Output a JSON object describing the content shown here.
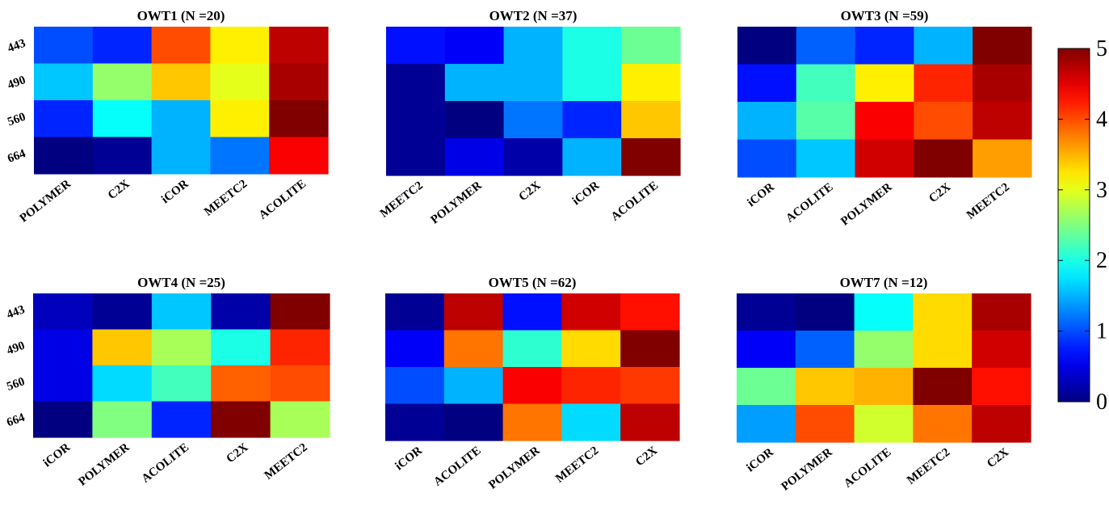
{
  "colors": {
    "colormap": "jet",
    "background": "#ffffff",
    "text": "#000000"
  },
  "chart_data": [
    {
      "type": "heatmap",
      "title": "OWT1  (N =20)",
      "x_categories": [
        "POLYMER",
        "C2X",
        "iCOR",
        "MEETC2",
        "ACOLITE"
      ],
      "y_categories": [
        "443",
        "490",
        "560",
        "664"
      ],
      "values": [
        [
          1.0,
          0.8,
          4.0,
          3.2,
          4.7
        ],
        [
          1.6,
          2.6,
          3.4,
          3.0,
          4.8
        ],
        [
          0.8,
          1.9,
          1.5,
          3.2,
          5.0
        ],
        [
          0.0,
          0.1,
          1.5,
          1.2,
          4.4
        ]
      ],
      "zlim": [
        0,
        5
      ]
    },
    {
      "type": "heatmap",
      "title": "OWT2  (N =37)",
      "x_categories": [
        "MEETC2",
        "POLYMER",
        "C2X",
        "iCOR",
        "ACOLITE"
      ],
      "y_categories": [
        "443",
        "490",
        "560",
        "664"
      ],
      "values": [
        [
          0.7,
          0.6,
          1.5,
          2.0,
          2.4
        ],
        [
          0.1,
          1.5,
          1.5,
          2.0,
          3.2
        ],
        [
          0.1,
          0.0,
          1.2,
          0.8,
          3.4
        ],
        [
          0.1,
          0.5,
          0.2,
          1.5,
          5.0
        ]
      ],
      "zlim": [
        0,
        5
      ]
    },
    {
      "type": "heatmap",
      "title": "OWT3  (N =59)",
      "x_categories": [
        "iCOR",
        "ACOLITE",
        "POLYMER",
        "C2X",
        "MEETC2"
      ],
      "y_categories": [
        "443",
        "490",
        "560",
        "664"
      ],
      "values": [
        [
          0.0,
          1.1,
          0.8,
          1.5,
          5.0
        ],
        [
          0.7,
          2.2,
          3.2,
          4.2,
          4.8
        ],
        [
          1.5,
          2.3,
          4.4,
          4.0,
          4.7
        ],
        [
          1.0,
          1.6,
          4.6,
          5.0,
          3.6
        ]
      ],
      "zlim": [
        0,
        5
      ]
    },
    {
      "type": "heatmap",
      "title": "OWT4  (N =25)",
      "x_categories": [
        "iCOR",
        "POLYMER",
        "ACOLITE",
        "C2X",
        "MEETC2"
      ],
      "y_categories": [
        "443",
        "490",
        "560",
        "664"
      ],
      "values": [
        [
          0.3,
          0.1,
          1.6,
          0.2,
          5.0
        ],
        [
          0.5,
          3.4,
          2.7,
          2.0,
          4.2
        ],
        [
          0.5,
          1.7,
          2.2,
          3.9,
          4.0
        ],
        [
          0.0,
          2.5,
          0.8,
          5.0,
          2.7
        ]
      ],
      "zlim": [
        0,
        5
      ]
    },
    {
      "type": "heatmap",
      "title": "OWT5  (N =62)",
      "x_categories": [
        "iCOR",
        "ACOLITE",
        "POLYMER",
        "MEETC2",
        "C2X"
      ],
      "y_categories": [
        "443",
        "490",
        "560",
        "664"
      ],
      "values": [
        [
          0.1,
          4.7,
          0.7,
          4.6,
          4.3
        ],
        [
          0.6,
          3.8,
          2.1,
          3.3,
          5.0
        ],
        [
          1.0,
          1.5,
          4.4,
          4.2,
          4.1
        ],
        [
          0.1,
          0.0,
          3.8,
          1.7,
          4.7
        ]
      ],
      "zlim": [
        0,
        5
      ]
    },
    {
      "type": "heatmap",
      "title": "OWT7  (N =12)",
      "x_categories": [
        "iCOR",
        "POLYMER",
        "ACOLITE",
        "MEETC2",
        "C2X"
      ],
      "y_categories": [
        "443",
        "490",
        "560",
        "664"
      ],
      "values": [
        [
          0.1,
          0.0,
          1.9,
          3.3,
          4.8
        ],
        [
          0.6,
          1.1,
          2.6,
          3.3,
          4.6
        ],
        [
          2.4,
          3.4,
          3.5,
          5.0,
          4.3
        ],
        [
          1.4,
          4.0,
          2.9,
          3.8,
          4.7
        ]
      ],
      "zlim": [
        0,
        5
      ]
    }
  ],
  "colorbar": {
    "ticks": [
      "5",
      "4",
      "3",
      "2",
      "1",
      "0"
    ],
    "zlim": [
      0,
      5
    ]
  }
}
